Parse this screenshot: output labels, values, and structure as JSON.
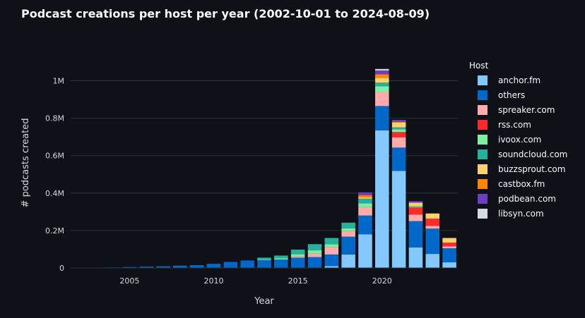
{
  "chart_data": {
    "type": "bar",
    "stacked": true,
    "title": "Podcast creations per host per year (2002-10-01 to 2024-08-09)",
    "xlabel": "Year",
    "ylabel": "# podcasts created",
    "legend_title": "Host",
    "legend_position": "right",
    "grid": true,
    "x_ticks": [
      2005,
      2010,
      2015,
      2020
    ],
    "y_ticks": [
      {
        "value": 0,
        "label": "0"
      },
      {
        "value": 200000,
        "label": "0.2M"
      },
      {
        "value": 400000,
        "label": "0.4M"
      },
      {
        "value": 600000,
        "label": "0.6M"
      },
      {
        "value": 800000,
        "label": "0.8M"
      },
      {
        "value": 1000000,
        "label": "1M"
      }
    ],
    "ylim": [
      0,
      1100000
    ],
    "xlim": [
      2001.5,
      2024.5
    ],
    "categories": [
      2002,
      2003,
      2004,
      2005,
      2006,
      2007,
      2008,
      2009,
      2010,
      2011,
      2012,
      2013,
      2014,
      2015,
      2016,
      2017,
      2018,
      2019,
      2020,
      2021,
      2022,
      2023,
      2024
    ],
    "series": [
      {
        "name": "anchor.fm",
        "color": "#83c9ff",
        "values": [
          0,
          0,
          0,
          0,
          0,
          0,
          0,
          0,
          0,
          0,
          0,
          0,
          0,
          0,
          0,
          10000,
          72000,
          180000,
          735000,
          518000,
          110000,
          75000,
          30000
        ]
      },
      {
        "name": "others",
        "color": "#0068c9",
        "values": [
          1000,
          1500,
          2500,
          5000,
          7000,
          9000,
          12000,
          15000,
          22000,
          32000,
          40000,
          42000,
          45000,
          55000,
          58000,
          62000,
          95000,
          100000,
          130000,
          125000,
          140000,
          135000,
          75000
        ]
      },
      {
        "name": "spreaker.com",
        "color": "#ffabab",
        "values": [
          0,
          0,
          0,
          0,
          0,
          0,
          0,
          0,
          0,
          0,
          0,
          0,
          0,
          8000,
          18000,
          40000,
          30000,
          45000,
          75000,
          55000,
          35000,
          15000,
          10000
        ]
      },
      {
        "name": "rss.com",
        "color": "#ff2b2b",
        "values": [
          0,
          0,
          0,
          0,
          0,
          0,
          0,
          0,
          0,
          0,
          0,
          0,
          0,
          0,
          0,
          0,
          0,
          0,
          0,
          28000,
          38000,
          38000,
          20000
        ]
      },
      {
        "name": "ivoox.com",
        "color": "#7defa1",
        "values": [
          0,
          0,
          0,
          0,
          0,
          0,
          0,
          0,
          0,
          0,
          0,
          3000,
          6000,
          10000,
          18000,
          15000,
          15000,
          20000,
          30000,
          15000,
          3000,
          0,
          0
        ]
      },
      {
        "name": "soundcloud.com",
        "color": "#29b09d",
        "values": [
          0,
          0,
          0,
          0,
          0,
          0,
          0,
          0,
          0,
          0,
          0,
          10000,
          15000,
          25000,
          33000,
          33000,
          30000,
          25000,
          20000,
          10000,
          3000,
          0,
          0
        ]
      },
      {
        "name": "buzzsprout.com",
        "color": "#ffd16a",
        "values": [
          0,
          0,
          0,
          0,
          0,
          0,
          0,
          0,
          0,
          0,
          0,
          0,
          0,
          0,
          0,
          0,
          0,
          7000,
          25000,
          25000,
          20000,
          28000,
          25000
        ]
      },
      {
        "name": "castbox.fm",
        "color": "#ff8700",
        "values": [
          0,
          0,
          0,
          0,
          0,
          0,
          0,
          0,
          0,
          0,
          0,
          0,
          0,
          0,
          0,
          0,
          0,
          12000,
          20000,
          5000,
          0,
          0,
          0
        ]
      },
      {
        "name": "podbean.com",
        "color": "#6d3fc0",
        "values": [
          0,
          0,
          0,
          0,
          0,
          0,
          0,
          0,
          0,
          0,
          0,
          0,
          0,
          0,
          0,
          0,
          0,
          15000,
          20000,
          10000,
          8000,
          0,
          0
        ]
      },
      {
        "name": "libsyn.com",
        "color": "#d5dae5",
        "values": [
          0,
          0,
          0,
          0,
          0,
          0,
          0,
          0,
          0,
          0,
          0,
          0,
          0,
          0,
          0,
          0,
          0,
          0,
          8000,
          0,
          0,
          0,
          0
        ]
      }
    ]
  }
}
